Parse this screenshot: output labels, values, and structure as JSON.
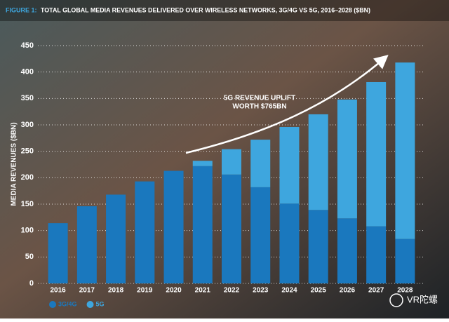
{
  "chart_data": {
    "type": "stacked-bar",
    "figure_label": "FIGURE 1:",
    "title": "TOTAL GLOBAL MEDIA REVENUES DELIVERED OVER WIRELESS NETWORKS, 3G/4G VS 5G, 2016–2028 ($BN)",
    "y_label": "MEDIA REVENUES ($BN)",
    "annotation": [
      "5G REVENUE UPLIFT",
      "WORTH $765BN"
    ],
    "categories": [
      "2016",
      "2017",
      "2018",
      "2019",
      "2020",
      "2021",
      "2022",
      "2023",
      "2024",
      "2025",
      "2026",
      "2027",
      "2028"
    ],
    "series": [
      {
        "name": "3G/4G",
        "color": "#1a78be",
        "values": [
          114,
          146,
          168,
          193,
          213,
          222,
          206,
          182,
          151,
          139,
          123,
          108,
          84
        ]
      },
      {
        "name": "5G",
        "color": "#3ea6de",
        "values": [
          0,
          0,
          0,
          0,
          0,
          10,
          48,
          90,
          145,
          181,
          225,
          273,
          334
        ]
      }
    ],
    "ylim": [
      0,
      450
    ],
    "yticks": [
      0,
      50,
      100,
      150,
      200,
      250,
      300,
      350,
      400,
      450
    ],
    "grid": true,
    "legend": "bottom-left",
    "watermark": "VR陀螺"
  }
}
